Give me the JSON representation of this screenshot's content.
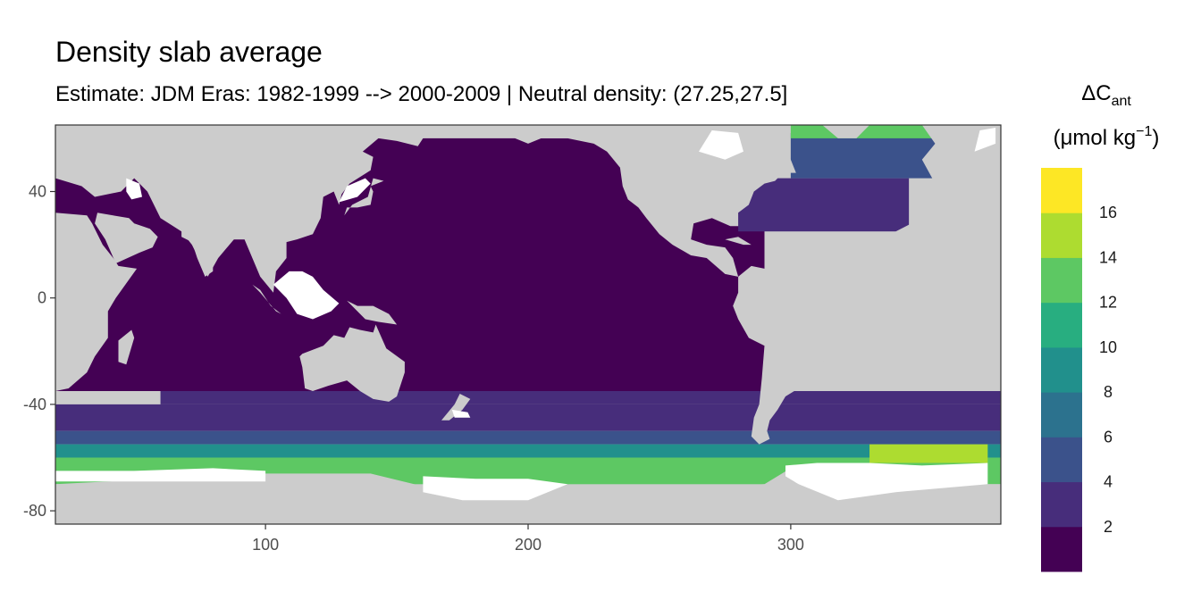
{
  "chart_data": {
    "type": "heatmap",
    "title": "Density slab average",
    "subtitle": "Estimate: JDM Eras: 1982-1999 --> 2000-2009 | Neutral density: (27.25,27.5]",
    "xlabel": "",
    "ylabel": "",
    "xlim": [
      20,
      380
    ],
    "ylim": [
      -85,
      65
    ],
    "x_ticks": [
      100,
      200,
      300
    ],
    "y_ticks": [
      40,
      0,
      -40,
      -80
    ],
    "legend": {
      "title_main": "ΔC",
      "title_sub": "ant",
      "title_units_pre": "(μmol kg",
      "title_units_sup": "−1",
      "title_units_post": ")",
      "placement": "right",
      "breaks": [
        2,
        4,
        6,
        8,
        10,
        12,
        14,
        16
      ],
      "colors": [
        "#440154",
        "#472D7B",
        "#3B528B",
        "#2C728E",
        "#21908C",
        "#28AE80",
        "#5DC863",
        "#ADDC30",
        "#FDE725"
      ]
    },
    "land_color": "#cccccc",
    "nodata_color": "#ffffff",
    "zonal_bands": [
      {
        "lat_range": [
          -35,
          60
        ],
        "lon_range": [
          20,
          290
        ],
        "value": 1
      },
      {
        "lat_range": [
          -40,
          -35
        ],
        "lon_range": [
          60,
          380
        ],
        "value": 2
      },
      {
        "lat_range": [
          -50,
          -40
        ],
        "lon_range": [
          20,
          380
        ],
        "value": 2
      },
      {
        "lat_range": [
          -55,
          -50
        ],
        "lon_range": [
          20,
          380
        ],
        "value": 4
      },
      {
        "lat_range": [
          -60,
          -55
        ],
        "lon_range": [
          20,
          380
        ],
        "value": 9
      },
      {
        "lat_range": [
          -70,
          -60
        ],
        "lon_range": [
          20,
          380
        ],
        "value": 12
      },
      {
        "lat_range": [
          25,
          45
        ],
        "lon_range": [
          280,
          345
        ],
        "value": 3
      },
      {
        "lat_range": [
          45,
          62
        ],
        "lon_range": [
          300,
          355
        ],
        "value": 5
      },
      {
        "lat_range": [
          60,
          66
        ],
        "lon_range": [
          300,
          355
        ],
        "value": 12
      },
      {
        "lat_range": [
          -62,
          -55
        ],
        "lon_range": [
          330,
          375
        ],
        "value": 15
      }
    ]
  }
}
